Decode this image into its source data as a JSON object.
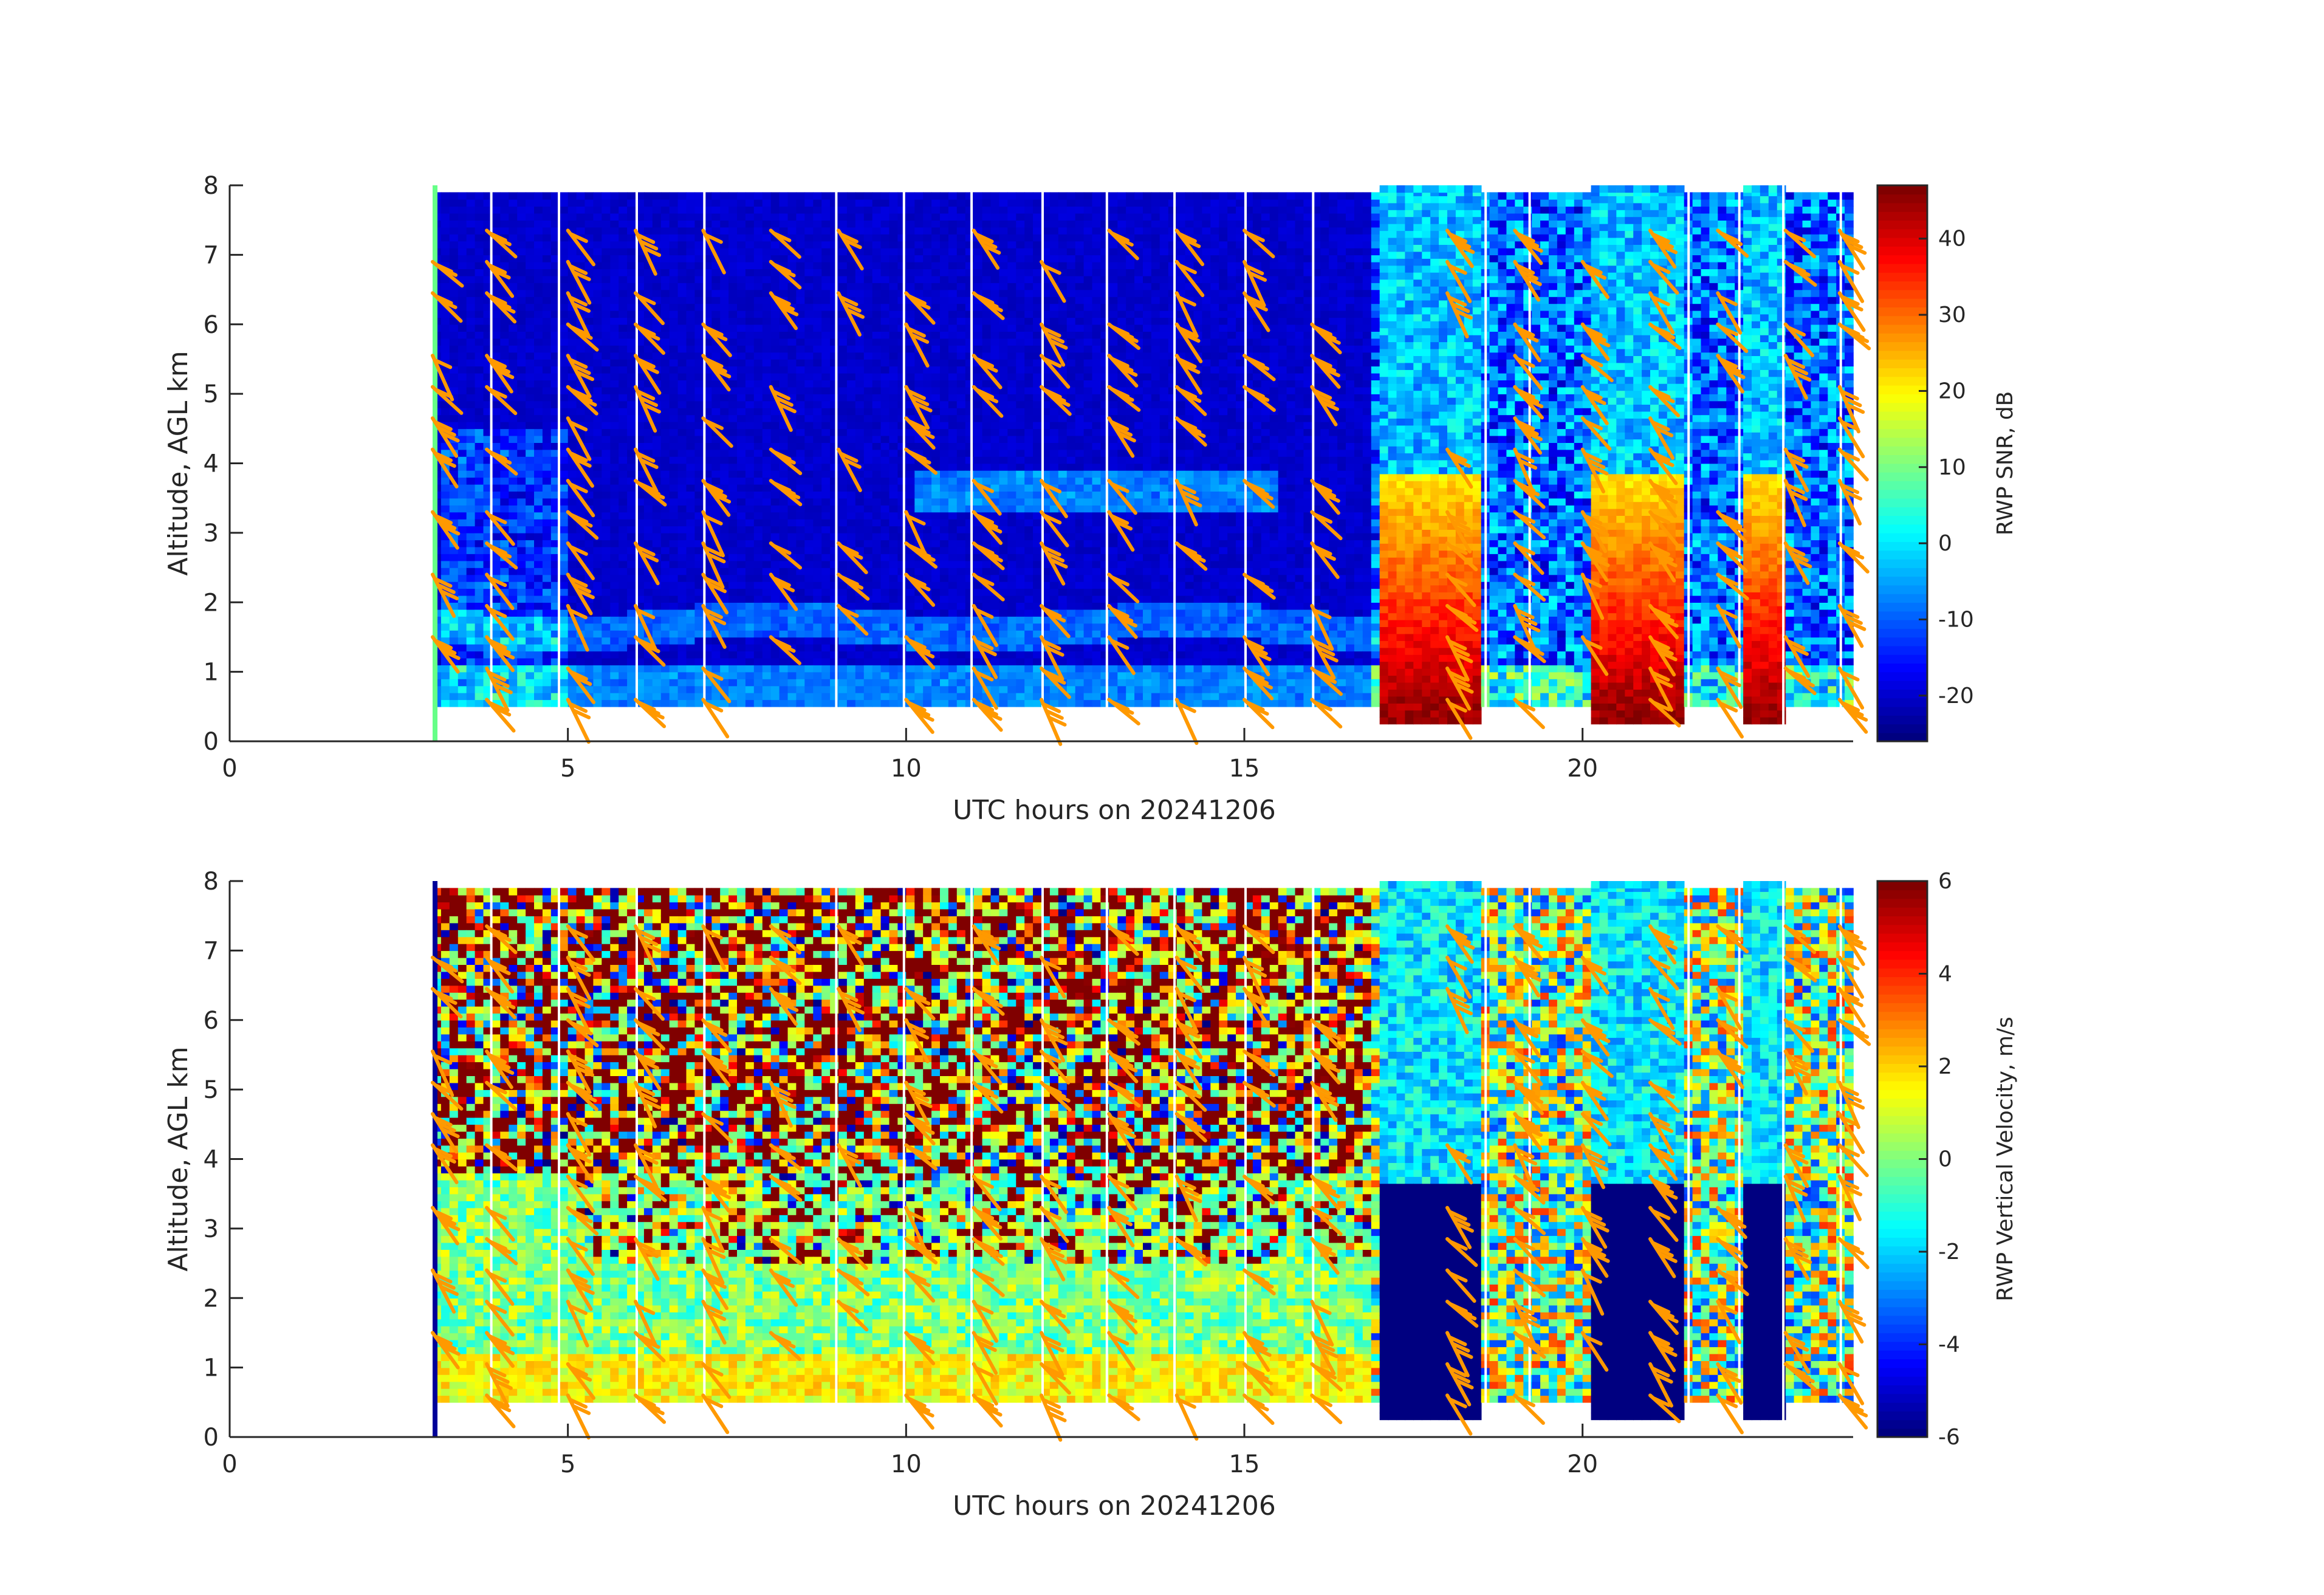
{
  "chart_data": [
    {
      "type": "heatmap",
      "title": "",
      "xlabel": "UTC hours on 20241206",
      "ylabel": "Altitude, AGL km",
      "xlim": [
        0,
        24
      ],
      "ylim": [
        0,
        8
      ],
      "x_ticks": [
        "0",
        "5",
        "10",
        "15",
        "20"
      ],
      "y_ticks": [
        "0",
        "1",
        "2",
        "3",
        "4",
        "5",
        "6",
        "7",
        "8"
      ],
      "colorbar": {
        "label": "RWP SNR, dB",
        "range": [
          -26,
          47
        ],
        "ticks": [
          "-20",
          "-10",
          "0",
          "10",
          "20",
          "30",
          "40"
        ],
        "tick_values": [
          -20,
          -10,
          0,
          10,
          20,
          30,
          40
        ],
        "colormap": "jet"
      },
      "data_coverage_hours": [
        3.0,
        24.0
      ],
      "deep_cloud_periods_hours": [
        [
          17.0,
          18.5
        ],
        [
          20.1,
          21.5
        ],
        [
          22.3,
          22.9
        ]
      ],
      "wind_barbs": true
    },
    {
      "type": "heatmap",
      "title": "",
      "xlabel": "UTC hours on 20241206",
      "ylabel": "Altitude, AGL km",
      "xlim": [
        0,
        24
      ],
      "ylim": [
        0,
        8
      ],
      "x_ticks": [
        "0",
        "5",
        "10",
        "15",
        "20"
      ],
      "y_ticks": [
        "0",
        "1",
        "2",
        "3",
        "4",
        "5",
        "6",
        "7",
        "8"
      ],
      "colorbar": {
        "label": "RWP Vertical Velocity, m/s",
        "range": [
          -6,
          6
        ],
        "ticks": [
          "-6",
          "-4",
          "-2",
          "0",
          "2",
          "4",
          "6"
        ],
        "tick_values": [
          -6,
          -4,
          -2,
          0,
          2,
          4,
          6
        ],
        "colormap": "jet"
      },
      "data_coverage_hours": [
        3.0,
        24.0
      ],
      "deep_cloud_periods_hours": [
        [
          17.0,
          18.5
        ],
        [
          20.1,
          21.5
        ],
        [
          22.3,
          22.9
        ]
      ],
      "wind_barbs": true
    }
  ],
  "colors": {
    "barb": "#ff9900",
    "background_low": "#0019b3",
    "axis": "#262626"
  }
}
